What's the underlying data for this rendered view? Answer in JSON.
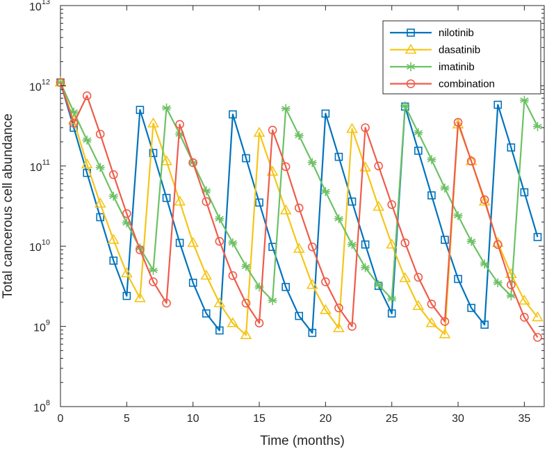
{
  "chart_data": {
    "type": "line",
    "title": "",
    "xlabel": "Time (months)",
    "ylabel": "Total cancerous cell abundance",
    "xlim": [
      0,
      36.5
    ],
    "ylim_log10": [
      8,
      13
    ],
    "y_scale": "log",
    "grid": false,
    "legend_position": "top-right",
    "x_ticks": [
      0,
      5,
      10,
      15,
      20,
      25,
      30,
      35
    ],
    "y_ticks": [
      {
        "base": "10",
        "exp": "8"
      },
      {
        "base": "10",
        "exp": "9"
      },
      {
        "base": "10",
        "exp": "10"
      },
      {
        "base": "10",
        "exp": "11"
      },
      {
        "base": "10",
        "exp": "12"
      },
      {
        "base": "10",
        "exp": "13"
      }
    ],
    "series": [
      {
        "name": "nilotinib",
        "color": "#0072BD",
        "marker": "square",
        "x": [
          0,
          1,
          2,
          3,
          4,
          5,
          6,
          7,
          8,
          9,
          10,
          11,
          12,
          13,
          14,
          15,
          16,
          17,
          18,
          19,
          20,
          21,
          22,
          23,
          24,
          25,
          26,
          27,
          28,
          29,
          30,
          31,
          32,
          33,
          34,
          35,
          36
        ],
        "y": [
          1100000000000.0,
          300000000000.0,
          82000000000.0,
          23000000000.0,
          6600000000.0,
          2400000000.0,
          500000000000.0,
          145000000000.0,
          40000000000.0,
          11000000000.0,
          3500000000.0,
          1450000000.0,
          890000000.0,
          440000000000.0,
          125000000000.0,
          35000000000.0,
          9800000000.0,
          3100000000.0,
          1350000000.0,
          830000000.0,
          450000000000.0,
          130000000000.0,
          36000000000.0,
          10500000000.0,
          3200000000.0,
          1450000000.0,
          550000000000.0,
          155000000000.0,
          43000000000.0,
          12000000000.0,
          3900000000.0,
          1700000000.0,
          1050000000.0,
          580000000000.0,
          170000000000.0,
          47000000000.0,
          13000000000.0
        ]
      },
      {
        "name": "dasatinib",
        "color": "#EDB120",
        "stroke": "#F5C518",
        "marker": "triangle",
        "x": [
          0,
          1,
          2,
          3,
          4,
          5,
          6,
          7,
          8,
          9,
          10,
          11,
          12,
          13,
          14,
          15,
          16,
          17,
          18,
          19,
          20,
          21,
          22,
          23,
          24,
          25,
          26,
          27,
          28,
          29,
          30,
          31,
          32,
          33,
          34,
          35,
          36
        ],
        "y": [
          1100000000000.0,
          370000000000.0,
          105000000000.0,
          34000000000.0,
          12000000000.0,
          4600000000.0,
          2250000000.0,
          340000000000.0,
          115000000000.0,
          36000000000.0,
          11000000000.0,
          4300000000.0,
          1950000000.0,
          1100000000.0,
          780000000.0,
          260000000000.0,
          85000000000.0,
          28000000000.0,
          9300000000.0,
          3300000000.0,
          1600000000.0,
          950000000.0,
          290000000000.0,
          96000000000.0,
          31000000000.0,
          10500000000.0,
          4000000000.0,
          1800000000.0,
          1100000000.0,
          800000000.0,
          330000000000.0,
          115000000000.0,
          36000000000.0,
          11000000000.0,
          4500000000.0,
          2100000000.0,
          1300000000.0
        ]
      },
      {
        "name": "imatinib",
        "color": "#77AC30",
        "stroke": "#6CC164",
        "marker": "asterisk",
        "x": [
          0,
          1,
          2,
          3,
          4,
          5,
          6,
          7,
          8,
          9,
          10,
          11,
          12,
          13,
          14,
          15,
          16,
          17,
          18,
          19,
          20,
          21,
          22,
          23,
          24,
          25,
          26,
          27,
          28,
          29,
          30,
          31,
          32,
          33,
          34,
          35,
          36
        ],
        "y": [
          1100000000000.0,
          470000000000.0,
          210000000000.0,
          96000000000.0,
          42000000000.0,
          19500000000.0,
          9500000000.0,
          5000000000.0,
          530000000000.0,
          250000000000.0,
          110000000000.0,
          49000000000.0,
          22000000000.0,
          11000000000.0,
          5600000000.0,
          3100000000.0,
          2100000000.0,
          520000000000.0,
          240000000000.0,
          110000000000.0,
          48000000000.0,
          22000000000.0,
          10500000000.0,
          5400000000.0,
          3300000000.0,
          2200000000.0,
          560000000000.0,
          260000000000.0,
          120000000000.0,
          53000000000.0,
          24000000000.0,
          11500000000.0,
          6000000000.0,
          3500000000.0,
          2400000000.0,
          660000000000.0,
          310000000000.0
        ]
      },
      {
        "name": "combination",
        "color": "#D95319",
        "stroke": "#EF5B49",
        "marker": "circle",
        "x": [
          0,
          1,
          2,
          3,
          4,
          5,
          6,
          7,
          8,
          9,
          10,
          11,
          12,
          13,
          14,
          15,
          16,
          17,
          18,
          19,
          20,
          21,
          22,
          23,
          24,
          25,
          26,
          27,
          28,
          29,
          30,
          31,
          32,
          33,
          34,
          35,
          36
        ],
        "y": [
          1100000000000.0,
          340000000000.0,
          750000000000.0,
          250000000000.0,
          78000000000.0,
          25500000000.0,
          9000000000.0,
          3600000000.0,
          1950000000.0,
          330000000000.0,
          110000000000.0,
          36000000000.0,
          11500000000.0,
          4300000000.0,
          1950000000.0,
          1100000000.0,
          280000000000.0,
          98000000000.0,
          30000000000.0,
          9800000000.0,
          3600000000.0,
          1700000000.0,
          1000000000.0,
          300000000000.0,
          100000000000.0,
          33000000000.0,
          11000000000.0,
          4100000000.0,
          1900000000.0,
          1150000000.0,
          350000000000.0,
          115000000000.0,
          38000000000.0,
          10500000000.0,
          3300000000.0,
          1300000000.0,
          730000000.0
        ]
      }
    ]
  }
}
